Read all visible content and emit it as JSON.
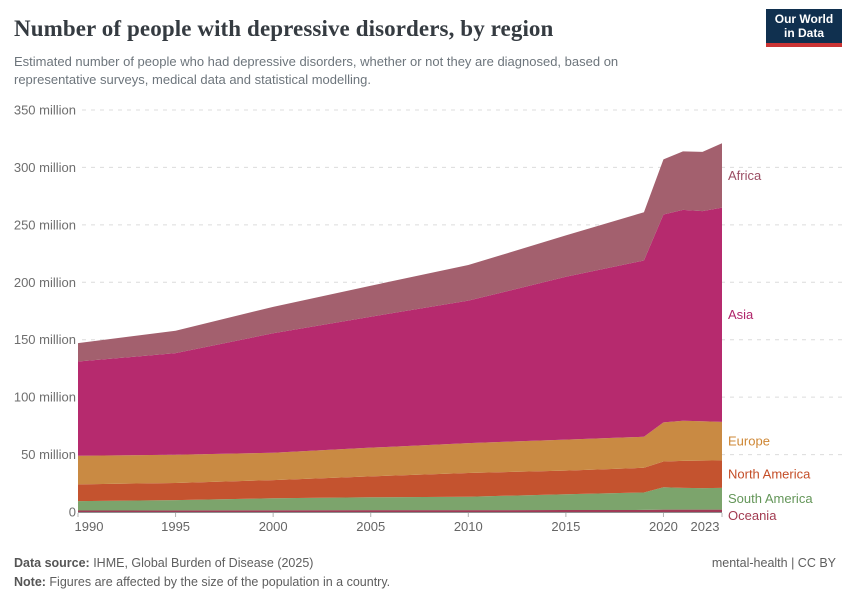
{
  "header": {
    "title": "Number of people with depressive disorders, by region",
    "subtitle_lines": [
      "Estimated number of people who had depressive disorders, whether or not they are diagnosed, based on",
      "representative surveys, medical data and statistical modelling."
    ],
    "logo": {
      "line1": "Our World",
      "line2": "in Data"
    }
  },
  "footer": {
    "source_label": "Data source:",
    "source_value": " IHME, Global Burden of Disease (2025)",
    "note_label": "Note:",
    "note_value": " Figures are affected by the size of the population in a country.",
    "right_text": "mental-health | CC BY"
  },
  "chart_data": {
    "type": "area",
    "stacked": true,
    "title": "Number of people with depressive disorders, by region",
    "unit": "people (millions)",
    "xlim": [
      1990,
      2023
    ],
    "ylim": [
      0,
      350
    ],
    "grid": true,
    "legend_position": "right-edge-labels",
    "x": [
      1990,
      1995,
      2000,
      2005,
      2010,
      2015,
      2019,
      2020,
      2021,
      2022,
      2023
    ],
    "series": [
      {
        "name": "Oceania",
        "color": "#a03a56",
        "label_color": "#a23b51",
        "values_millions": [
          1.3,
          1.4,
          1.5,
          1.6,
          1.6,
          1.7,
          1.8,
          2.1,
          2.1,
          2.1,
          2.1
        ]
      },
      {
        "name": "South America",
        "color": "#7ca46c",
        "label_color": "#649659",
        "values_millions": [
          8.2,
          8.9,
          10.5,
          11.2,
          11.7,
          13.8,
          15.2,
          19.4,
          18.9,
          18.7,
          18.9
        ]
      },
      {
        "name": "North America",
        "color": "#c4532f",
        "label_color": "#c44e28",
        "values_millions": [
          14.5,
          15.0,
          15.8,
          18.2,
          20.7,
          20.5,
          21.5,
          22.5,
          23.5,
          23.9,
          24.0
        ]
      },
      {
        "name": "Europe",
        "color": "#c98a43",
        "label_color": "#ce8735",
        "values_millions": [
          25.0,
          24.5,
          23.8,
          25.0,
          26.0,
          27.0,
          27.0,
          34.0,
          35.0,
          34.3,
          33.5
        ]
      },
      {
        "name": "Asia",
        "color": "#b62a6e",
        "label_color": "#b0256a",
        "values_millions": [
          82.0,
          88.5,
          104.0,
          114.0,
          124.0,
          141.8,
          153.5,
          181.0,
          183.5,
          183.0,
          186.5
        ]
      },
      {
        "name": "Africa",
        "color": "#a3606e",
        "label_color": "#9b4e63",
        "values_millions": [
          16.0,
          19.5,
          23.0,
          27.0,
          31.0,
          36.0,
          42.0,
          48.0,
          51.0,
          51.5,
          56.0
        ]
      }
    ],
    "y_ticks": [
      {
        "value": 0,
        "label": "0"
      },
      {
        "value": 50,
        "label": "50 million"
      },
      {
        "value": 100,
        "label": "100 million"
      },
      {
        "value": 150,
        "label": "150 million"
      },
      {
        "value": 200,
        "label": "200 million"
      },
      {
        "value": 250,
        "label": "250 million"
      },
      {
        "value": 300,
        "label": "300 million"
      },
      {
        "value": 350,
        "label": "350 million"
      }
    ],
    "x_ticks": [
      {
        "value": 1990,
        "label": "1990"
      },
      {
        "value": 1995,
        "label": "1995"
      },
      {
        "value": 2000,
        "label": "2000"
      },
      {
        "value": 2005,
        "label": "2005"
      },
      {
        "value": 2010,
        "label": "2010"
      },
      {
        "value": 2015,
        "label": "2015"
      },
      {
        "value": 2020,
        "label": "2020"
      },
      {
        "value": 2023,
        "label": "2023"
      }
    ]
  }
}
